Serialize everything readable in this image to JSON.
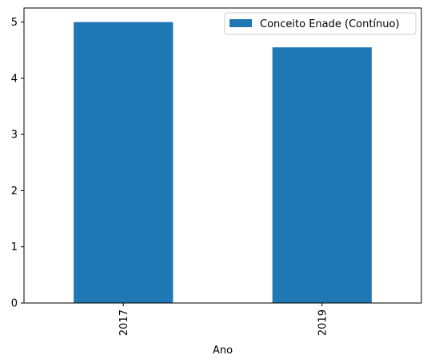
{
  "chart_data": {
    "type": "bar",
    "categories": [
      "2017",
      "2019"
    ],
    "series": [
      {
        "name": "Conceito Enade (Contínuo)",
        "values": [
          5.0,
          4.55
        ],
        "color": "#1f77b4"
      }
    ],
    "xlabel": "Ano",
    "ylabel": "",
    "ylim": [
      0,
      5.25
    ],
    "yticks": [
      0,
      1,
      2,
      3,
      4,
      5
    ],
    "legend_position": "top-right",
    "grid": false
  }
}
